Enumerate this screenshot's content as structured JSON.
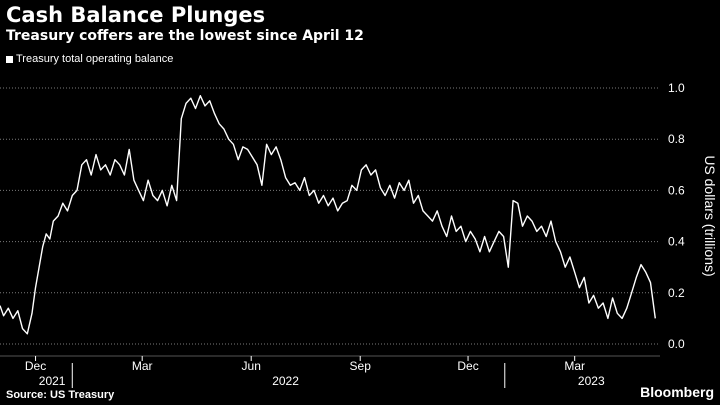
{
  "header": {
    "title": "Cash Balance Plunges",
    "subtitle": "Treasury coffers are the lowest since April 12"
  },
  "footer": {
    "source": "Source: US Treasury",
    "brand": "Bloomberg"
  },
  "colors": {
    "background": "#000000",
    "line": "#ffffff",
    "grid": "#7a7a7a",
    "text": "#ffffff"
  },
  "chart_data": {
    "type": "line",
    "title": "Cash Balance Plunges",
    "subtitle": "Treasury coffers are the lowest since April 12",
    "ylabel": "US dollars (trillions)",
    "xlabel": "",
    "ylim": [
      0,
      1.0
    ],
    "y_ticks": [
      "0.0",
      "0.2",
      "0.4",
      "0.6",
      "0.8",
      "1.0"
    ],
    "y_axis_position": "right",
    "grid": "horizontal dotted",
    "legend_position": "top-left",
    "x_tick_labels": [
      "Dec",
      "Mar",
      "Jun",
      "Sep",
      "Dec",
      "Mar"
    ],
    "x_ticks": [
      "2021-12-01",
      "2022-03-01",
      "2022-06-01",
      "2022-09-01",
      "2022-12-01",
      "2023-03-01"
    ],
    "year_labels": [
      {
        "label": "2021",
        "date": "2021-12-15"
      },
      {
        "label": "2022",
        "date": "2022-06-30"
      },
      {
        "label": "2023",
        "date": "2023-03-15"
      }
    ],
    "year_separators": [
      "2022-01-01",
      "2023-01-01"
    ],
    "xlim": [
      "2021-11-01",
      "2023-05-12"
    ],
    "series": [
      {
        "name": "Treasury total operating balance",
        "x": [
          "2021-11-01",
          "2021-11-04",
          "2021-11-08",
          "2021-11-12",
          "2021-11-16",
          "2021-11-20",
          "2021-11-24",
          "2021-11-28",
          "2021-12-01",
          "2021-12-04",
          "2021-12-07",
          "2021-12-10",
          "2021-12-13",
          "2021-12-16",
          "2021-12-20",
          "2021-12-24",
          "2021-12-28",
          "2022-01-01",
          "2022-01-05",
          "2022-01-09",
          "2022-01-13",
          "2022-01-17",
          "2022-01-21",
          "2022-01-25",
          "2022-01-29",
          "2022-02-02",
          "2022-02-06",
          "2022-02-10",
          "2022-02-14",
          "2022-02-18",
          "2022-02-22",
          "2022-02-26",
          "2022-03-02",
          "2022-03-06",
          "2022-03-10",
          "2022-03-14",
          "2022-03-18",
          "2022-03-22",
          "2022-03-26",
          "2022-03-30",
          "2022-04-03",
          "2022-04-07",
          "2022-04-11",
          "2022-04-15",
          "2022-04-19",
          "2022-04-23",
          "2022-04-27",
          "2022-05-01",
          "2022-05-05",
          "2022-05-09",
          "2022-05-13",
          "2022-05-17",
          "2022-05-21",
          "2022-05-25",
          "2022-05-29",
          "2022-06-02",
          "2022-06-06",
          "2022-06-10",
          "2022-06-14",
          "2022-06-18",
          "2022-06-22",
          "2022-06-26",
          "2022-06-30",
          "2022-07-04",
          "2022-07-08",
          "2022-07-12",
          "2022-07-16",
          "2022-07-20",
          "2022-07-24",
          "2022-07-28",
          "2022-08-01",
          "2022-08-05",
          "2022-08-09",
          "2022-08-13",
          "2022-08-17",
          "2022-08-21",
          "2022-08-25",
          "2022-08-29",
          "2022-09-02",
          "2022-09-06",
          "2022-09-10",
          "2022-09-14",
          "2022-09-18",
          "2022-09-22",
          "2022-09-26",
          "2022-09-30",
          "2022-10-04",
          "2022-10-08",
          "2022-10-12",
          "2022-10-16",
          "2022-10-20",
          "2022-10-24",
          "2022-10-28",
          "2022-11-01",
          "2022-11-05",
          "2022-11-09",
          "2022-11-13",
          "2022-11-17",
          "2022-11-21",
          "2022-11-25",
          "2022-11-29",
          "2022-12-03",
          "2022-12-07",
          "2022-12-11",
          "2022-12-15",
          "2022-12-19",
          "2022-12-23",
          "2022-12-27",
          "2022-12-31",
          "2023-01-04",
          "2023-01-08",
          "2023-01-12",
          "2023-01-16",
          "2023-01-20",
          "2023-01-24",
          "2023-01-28",
          "2023-02-01",
          "2023-02-05",
          "2023-02-09",
          "2023-02-13",
          "2023-02-17",
          "2023-02-21",
          "2023-02-25",
          "2023-03-01",
          "2023-03-05",
          "2023-03-09",
          "2023-03-13",
          "2023-03-17",
          "2023-03-21",
          "2023-03-25",
          "2023-03-29",
          "2023-04-02",
          "2023-04-06",
          "2023-04-10",
          "2023-04-14",
          "2023-04-18",
          "2023-04-22",
          "2023-04-26",
          "2023-04-30",
          "2023-05-04",
          "2023-05-08"
        ],
        "values": [
          0.15,
          0.11,
          0.14,
          0.1,
          0.13,
          0.06,
          0.04,
          0.12,
          0.22,
          0.3,
          0.38,
          0.43,
          0.41,
          0.48,
          0.5,
          0.55,
          0.52,
          0.58,
          0.6,
          0.7,
          0.72,
          0.66,
          0.74,
          0.68,
          0.7,
          0.66,
          0.72,
          0.7,
          0.66,
          0.76,
          0.64,
          0.6,
          0.56,
          0.64,
          0.58,
          0.56,
          0.6,
          0.54,
          0.62,
          0.56,
          0.88,
          0.94,
          0.96,
          0.92,
          0.97,
          0.93,
          0.95,
          0.9,
          0.86,
          0.84,
          0.8,
          0.78,
          0.72,
          0.77,
          0.76,
          0.73,
          0.7,
          0.62,
          0.78,
          0.74,
          0.77,
          0.72,
          0.65,
          0.62,
          0.63,
          0.6,
          0.65,
          0.58,
          0.6,
          0.55,
          0.58,
          0.54,
          0.57,
          0.52,
          0.55,
          0.56,
          0.62,
          0.6,
          0.68,
          0.7,
          0.66,
          0.68,
          0.61,
          0.58,
          0.62,
          0.57,
          0.63,
          0.6,
          0.64,
          0.55,
          0.58,
          0.52,
          0.5,
          0.48,
          0.52,
          0.46,
          0.42,
          0.5,
          0.44,
          0.46,
          0.4,
          0.44,
          0.41,
          0.36,
          0.42,
          0.36,
          0.4,
          0.44,
          0.42,
          0.3,
          0.56,
          0.55,
          0.46,
          0.5,
          0.48,
          0.44,
          0.46,
          0.42,
          0.48,
          0.4,
          0.36,
          0.3,
          0.34,
          0.28,
          0.22,
          0.26,
          0.16,
          0.19,
          0.14,
          0.16,
          0.1,
          0.18,
          0.12,
          0.1,
          0.14,
          0.2,
          0.26,
          0.31,
          0.28,
          0.24,
          0.1
        ]
      }
    ]
  }
}
